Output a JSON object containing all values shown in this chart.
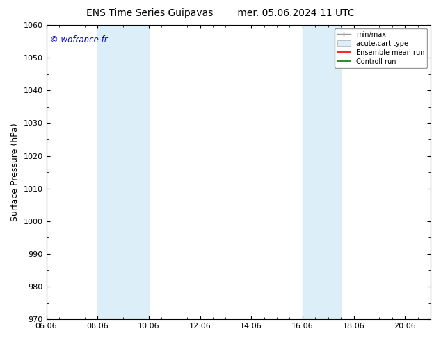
{
  "title_left": "ENS Time Series Guipavas",
  "title_right": "mer. 05.06.2024 11 UTC",
  "ylabel": "Surface Pressure (hPa)",
  "ylim": [
    970,
    1060
  ],
  "yticks": [
    970,
    980,
    990,
    1000,
    1010,
    1020,
    1030,
    1040,
    1050,
    1060
  ],
  "xlim": [
    0,
    15
  ],
  "xtick_labels": [
    "06.06",
    "08.06",
    "10.06",
    "12.06",
    "14.06",
    "16.06",
    "18.06",
    "20.06"
  ],
  "xtick_positions": [
    0,
    2,
    4,
    6,
    8,
    10,
    12,
    14
  ],
  "shaded_bands": [
    {
      "xmin": 2.0,
      "xmax": 4.0
    },
    {
      "xmin": 10.0,
      "xmax": 11.5
    }
  ],
  "shaded_color": "#dceef8",
  "background_color": "#ffffff",
  "watermark_text": "© wofrance.fr",
  "watermark_color": "#0000cc",
  "legend_labels": [
    "min/max",
    "acute;cart type",
    "Ensemble mean run",
    "Controll run"
  ],
  "legend_line_colors": [
    "#aaaaaa",
    "#c8dcea",
    "#ff0000",
    "#008000"
  ],
  "grid_color": "#cccccc",
  "title_fontsize": 10,
  "tick_fontsize": 8,
  "ylabel_fontsize": 9,
  "legend_fontsize": 7
}
